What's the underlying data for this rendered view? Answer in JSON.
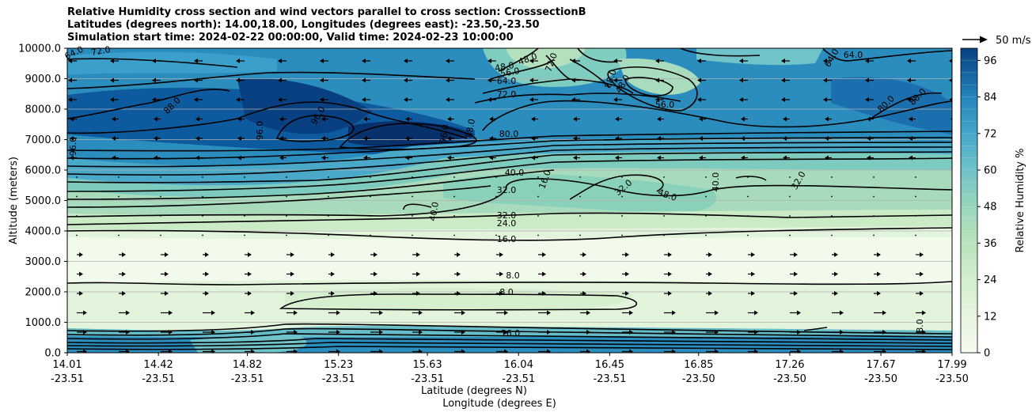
{
  "titles": [
    "Relative Humidity cross section and wind vectors parallel to cross section: CrosssectionB",
    "Latitudes (degrees north): 14.00,18.00, Longitudes (degrees east): -23.50,-23.50",
    "Simulation start time: 2024-02-22 00:00:00, Valid time: 2024-02-23 10:00:00"
  ],
  "chart_data": {
    "type": "heatmap",
    "title": "Relative Humidity cross section and wind vectors parallel to cross section: CrosssectionB",
    "ylabel": "Altitude (meters)",
    "xlabel": "Latitude (degrees N)",
    "xlabel2": "Longitude (degrees E)",
    "ylim": [
      0,
      10000
    ],
    "y_ticks": [
      "0.0",
      "1000.0",
      "2000.0",
      "3000.0",
      "4000.0",
      "5000.0",
      "6000.0",
      "7000.0",
      "8000.0",
      "9000.0",
      "10000.0"
    ],
    "x_ticks_lat": [
      "14.01",
      "14.42",
      "14.82",
      "15.23",
      "15.63",
      "16.04",
      "16.45",
      "16.85",
      "17.26",
      "17.67",
      "17.99"
    ],
    "x_ticks_lon": [
      "-23.51",
      "-23.51",
      "-23.51",
      "-23.51",
      "-23.51",
      "-23.51",
      "-23.51",
      "-23.50",
      "-23.50",
      "-23.50",
      "-23.50"
    ],
    "grid": "horizontal",
    "colorbar": {
      "label": "Relative Humidity %",
      "range": [
        0,
        100
      ],
      "ticks": [
        "0",
        "12",
        "24",
        "36",
        "48",
        "60",
        "72",
        "84",
        "96"
      ],
      "colormap": "GnBu"
    },
    "quiver_key": "50 m/s",
    "contour_labels": [
      "64.0",
      "72.0",
      "88.0",
      "96.0",
      "96.0",
      "96.0",
      "88.0",
      "80.0",
      "96.0",
      "40.0",
      "32.0",
      "24.0",
      "16.0",
      "8.0",
      "8.0",
      "16.0",
      "40.0",
      "32.0",
      "48.0",
      "32.0",
      "40.0",
      "32.0",
      "88.0",
      "80.0",
      "64.0",
      "64.0",
      "56.0",
      "56.0",
      "72.0",
      "48.0",
      "88.0",
      "72.0",
      "16.0",
      "8.0",
      "64.0",
      "48.0",
      "48.0"
    ]
  }
}
